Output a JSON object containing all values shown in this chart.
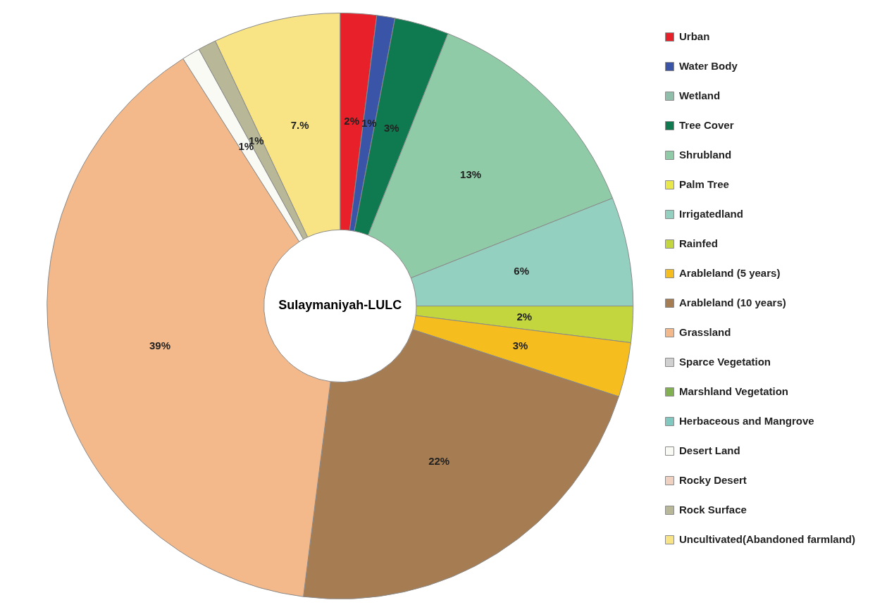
{
  "chart_data": {
    "type": "donut",
    "title": "Sulaymaniyah-LULC",
    "categories": [
      "Urban",
      "Water Body",
      "Wetland",
      "Tree Cover",
      "Shrubland",
      "Palm Tree",
      "Irrigatedland",
      "Rainfed",
      "Arableland (5 years)",
      "Arableland (10 years)",
      "Grassland",
      "Sparce Vegetation",
      "Marshland Vegetation",
      "Herbaceous and Mangrove",
      "Desert Land",
      "Rocky Desert",
      "Rock Surface",
      "Uncultivated(Abandoned farmland)"
    ],
    "values": [
      2,
      1,
      0,
      3,
      13,
      0,
      6,
      2,
      3,
      22,
      39,
      0,
      0,
      0,
      1,
      0,
      1,
      7
    ],
    "colors": [
      "#e8202a",
      "#3a55a8",
      "#8fbfaa",
      "#0f7a50",
      "#8ecba6",
      "#e8e84a",
      "#93d0bf",
      "#c4d63e",
      "#f5be1e",
      "#a67c52",
      "#f4b98a",
      "#d0d0d0",
      "#80b050",
      "#80c8c0",
      "#fafaf5",
      "#f0d0c0",
      "#b8b898",
      "#f8e484"
    ],
    "value_labels": [
      "2%",
      "1%",
      null,
      "3%",
      "13%",
      null,
      "6%",
      "2%",
      "3%",
      "22%",
      "39%",
      null,
      null,
      null,
      "1%",
      null,
      "1%",
      "7.%"
    ],
    "legend": "right"
  }
}
